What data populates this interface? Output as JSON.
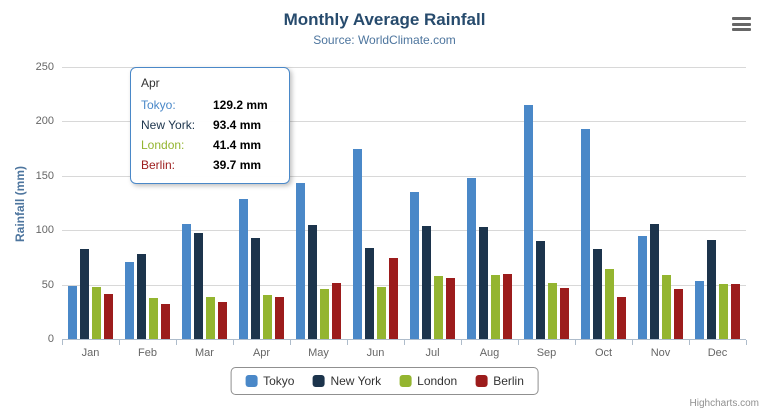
{
  "header": {
    "title": "Monthly Average Rainfall",
    "subtitle": "Source: WorldClimate.com"
  },
  "chart_data": {
    "type": "bar",
    "title": "Monthly Average Rainfall",
    "subtitle": "Source: WorldClimate.com",
    "categories": [
      "Jan",
      "Feb",
      "Mar",
      "Apr",
      "May",
      "Jun",
      "Jul",
      "Aug",
      "Sep",
      "Oct",
      "Nov",
      "Dec"
    ],
    "series": [
      {
        "name": "Tokyo",
        "color": "#4a88c8",
        "values": [
          49.9,
          71.5,
          106.4,
          129.2,
          144.0,
          176.0,
          135.6,
          148.5,
          216.4,
          194.1,
          95.6,
          54.4
        ]
      },
      {
        "name": "New York",
        "color": "#1c344c",
        "values": [
          83.6,
          78.8,
          98.5,
          93.4,
          106.0,
          84.5,
          105.0,
          104.3,
          91.2,
          83.5,
          106.6,
          92.3
        ]
      },
      {
        "name": "London",
        "color": "#94b530",
        "values": [
          48.9,
          38.8,
          39.3,
          41.4,
          47.0,
          48.3,
          59.0,
          59.6,
          52.4,
          65.2,
          59.3,
          51.2
        ]
      },
      {
        "name": "Berlin",
        "color": "#9c1c1c",
        "values": [
          42.4,
          33.2,
          34.5,
          39.7,
          52.6,
          75.5,
          57.4,
          60.4,
          47.6,
          39.1,
          46.8,
          51.1
        ]
      }
    ],
    "xlabel": "",
    "ylabel": "Rainfall (mm)",
    "ylim": [
      0,
      250
    ],
    "yticks": [
      0,
      50,
      100,
      150,
      200,
      250
    ],
    "grid": true,
    "legend_position": "bottom"
  },
  "tooltip": {
    "category": "Apr",
    "rows": [
      {
        "label": "Tokyo:",
        "value": "129.2 mm"
      },
      {
        "label": "New York:",
        "value": "93.4 mm"
      },
      {
        "label": "London:",
        "value": "41.4 mm"
      },
      {
        "label": "Berlin:",
        "value": "39.7 mm"
      }
    ]
  },
  "legend": {
    "items": [
      "Tokyo",
      "New York",
      "London",
      "Berlin"
    ]
  },
  "icons": {
    "export_menu": "hamburger-icon"
  },
  "credits": "Highcharts.com"
}
